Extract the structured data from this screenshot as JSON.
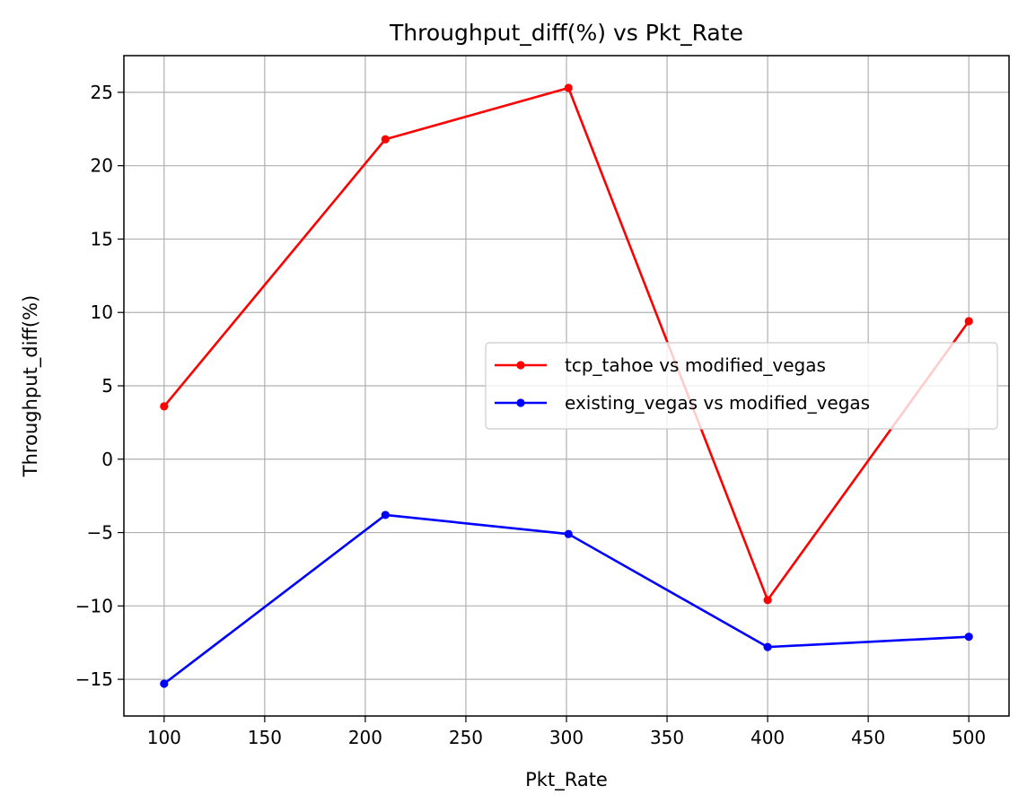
{
  "chart_data": {
    "type": "line",
    "title": "Throughput_diff(%) vs Pkt_Rate",
    "xlabel": "Pkt_Rate",
    "ylabel": "Throughput_diff(%)",
    "xlim": [
      80,
      520
    ],
    "ylim": [
      -17.5,
      27.5
    ],
    "xticks": [
      100,
      150,
      200,
      250,
      300,
      350,
      400,
      450,
      500
    ],
    "yticks": [
      -15,
      -10,
      -5,
      0,
      5,
      10,
      15,
      20,
      25
    ],
    "xtick_labels": [
      "100",
      "150",
      "200",
      "250",
      "300",
      "350",
      "400",
      "450",
      "500"
    ],
    "ytick_labels": [
      "−15",
      "−10",
      "−5",
      "0",
      "5",
      "10",
      "15",
      "20",
      "25"
    ],
    "grid": true,
    "legend_position": "center-right",
    "series": [
      {
        "name": "tcp_tahoe vs modified_vegas",
        "color": "#ff0000",
        "marker": "circle",
        "x": [
          100,
          210,
          301,
          400,
          500
        ],
        "y": [
          3.6,
          21.8,
          25.3,
          -9.6,
          9.4
        ]
      },
      {
        "name": "existing_vegas vs modified_vegas",
        "color": "#0000ff",
        "marker": "circle",
        "x": [
          100,
          210,
          301,
          400,
          500
        ],
        "y": [
          -15.3,
          -3.8,
          -5.1,
          -12.8,
          -12.1
        ]
      }
    ]
  }
}
